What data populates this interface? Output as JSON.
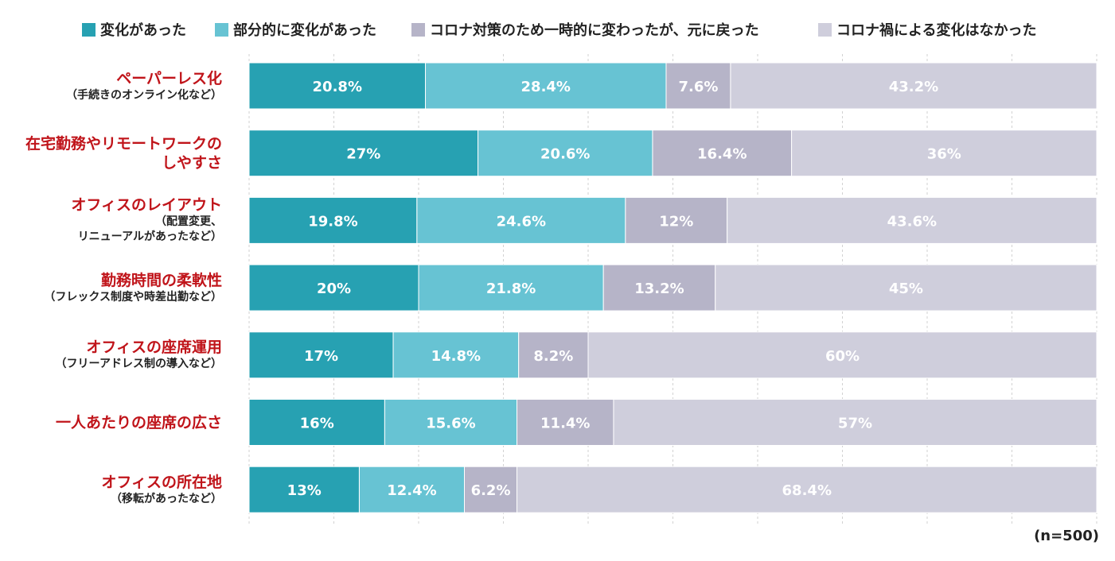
{
  "chart_data": {
    "type": "bar",
    "orientation": "horizontal",
    "stacked": true,
    "xlim": [
      0,
      100
    ],
    "grid": true,
    "legend_position": "top",
    "colors": [
      "#27a1b2",
      "#67c3d3",
      "#b6b4c8",
      "#cfcedc"
    ],
    "series": [
      {
        "name": "変化があった",
        "values": [
          20.8,
          27,
          19.8,
          20,
          17,
          16,
          13
        ]
      },
      {
        "name": "部分的に変化があった",
        "values": [
          28.4,
          20.6,
          24.6,
          21.8,
          14.8,
          15.6,
          12.4
        ]
      },
      {
        "name": "コロナ対策のため一時的に変わったが、元に戻った",
        "values": [
          7.6,
          16.4,
          12,
          13.2,
          8.2,
          11.4,
          6.2
        ]
      },
      {
        "name": "コロナ禍による変化はなかった",
        "values": [
          43.2,
          36,
          43.6,
          45,
          60,
          57,
          68.4
        ]
      }
    ],
    "value_labels": [
      [
        "20.8%",
        "27%",
        "19.8%",
        "20%",
        "17%",
        "16%",
        "13%"
      ],
      [
        "28.4%",
        "20.6%",
        "24.6%",
        "21.8%",
        "14.8%",
        "15.6%",
        "12.4%"
      ],
      [
        "7.6%",
        "16.4%",
        "12%",
        "13.2%",
        "8.2%",
        "11.4%",
        "6.2%"
      ],
      [
        "43.2%",
        "36%",
        "43.6%",
        "45%",
        "60%",
        "57%",
        "68.4%"
      ]
    ],
    "categories": [
      {
        "lines": [
          "ペーパーレス化"
        ],
        "sub": [
          "（手続きのオンライン化など）"
        ]
      },
      {
        "lines": [
          "在宅勤務やリモートワークの",
          "しやすさ"
        ],
        "sub": []
      },
      {
        "lines": [
          "オフィスのレイアウト"
        ],
        "sub": [
          "（配置変更、",
          "リニューアルがあったなど）"
        ]
      },
      {
        "lines": [
          "勤務時間の柔軟性"
        ],
        "sub": [
          "（フレックス制度や時差出勤など）"
        ]
      },
      {
        "lines": [
          "オフィスの座席運用"
        ],
        "sub": [
          "（フリーアドレス制の導入など）"
        ]
      },
      {
        "lines": [
          "一人あたりの座席の広さ"
        ],
        "sub": []
      },
      {
        "lines": [
          "オフィスの所在地"
        ],
        "sub": [
          "（移転があったなど）"
        ]
      }
    ],
    "note": "(n=500)"
  }
}
